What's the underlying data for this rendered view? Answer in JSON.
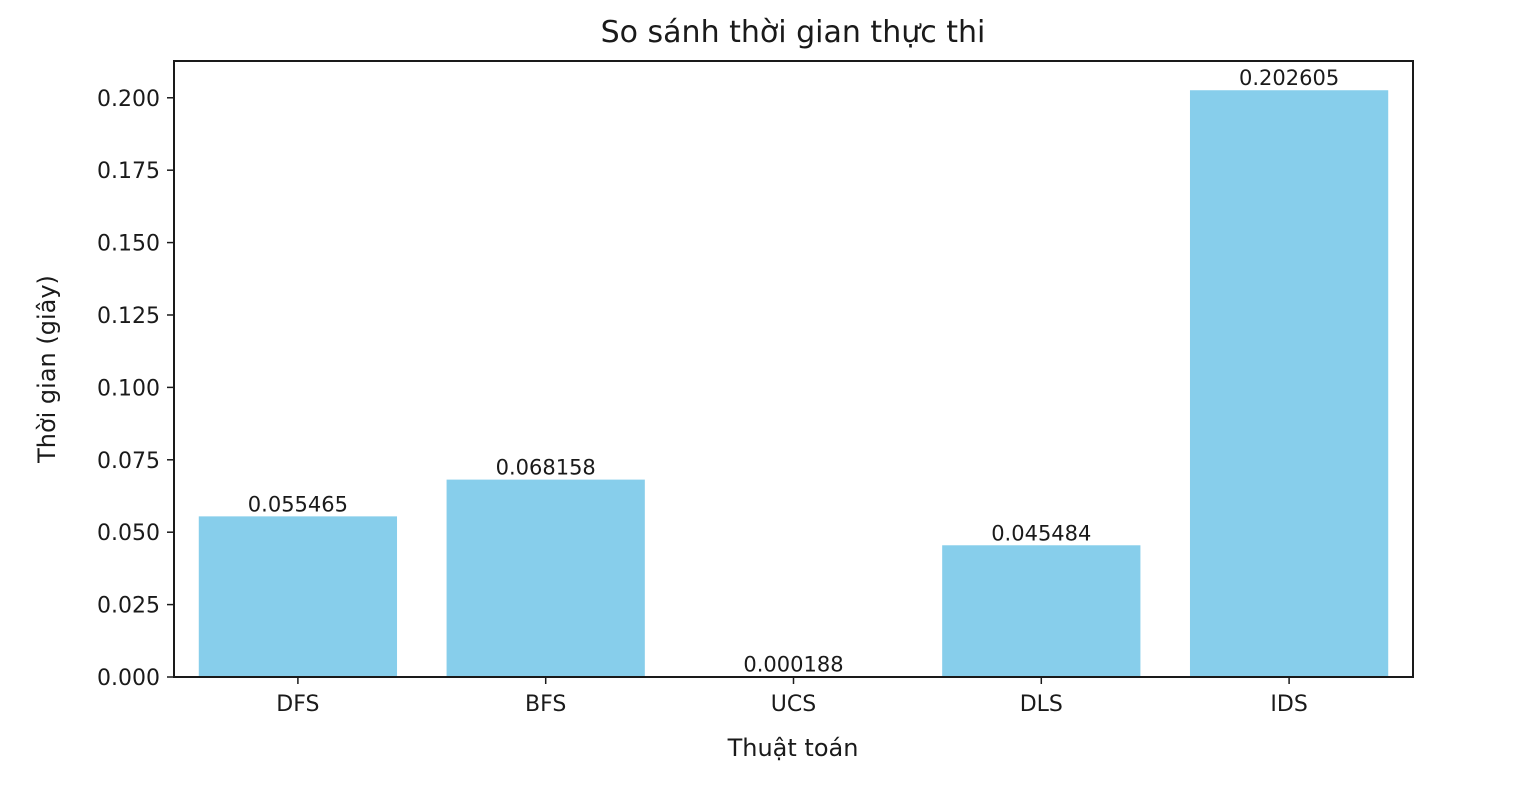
{
  "chart_data": {
    "type": "bar",
    "title": "So sánh thời gian thực thi",
    "xlabel": "Thuật toán",
    "ylabel": "Thời gian (giây)",
    "categories": [
      "DFS",
      "BFS",
      "UCS",
      "DLS",
      "IDS"
    ],
    "values": [
      0.055465,
      0.068158,
      0.000188,
      0.045484,
      0.202605
    ],
    "value_labels": [
      "0.055465",
      "0.068158",
      "0.000188",
      "0.045484",
      "0.202605"
    ],
    "yticks": [
      "0.000",
      "0.025",
      "0.050",
      "0.075",
      "0.100",
      "0.125",
      "0.150",
      "0.175",
      "0.200"
    ],
    "ylim": [
      0,
      0.2127
    ],
    "bar_color": "#87CEEB",
    "grid": false,
    "legend": "none"
  }
}
